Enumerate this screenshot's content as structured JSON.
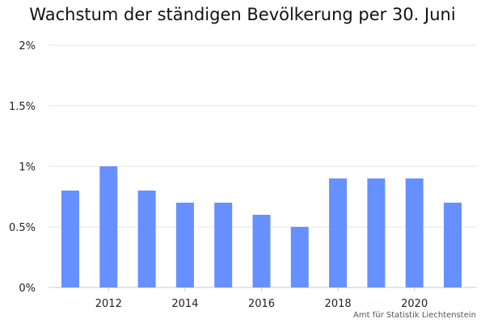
{
  "chart_data": {
    "type": "bar",
    "title": "Wachstum der ständigen Bevölkerung per 30. Juni",
    "xlabel": "",
    "ylabel": "",
    "x": [
      2011,
      2012,
      2013,
      2014,
      2015,
      2016,
      2017,
      2018,
      2019,
      2020,
      2021
    ],
    "values": [
      0.8,
      1.0,
      0.8,
      0.7,
      0.7,
      0.6,
      0.5,
      0.9,
      0.9,
      0.9,
      0.7
    ],
    "x_tick_labels": [
      "2012",
      "2014",
      "2016",
      "2018",
      "2020"
    ],
    "y_ticks": [
      0,
      0.5,
      1,
      1.5,
      2
    ],
    "y_tick_labels": [
      "0%",
      "0.5%",
      "1%",
      "1.5%",
      "2%"
    ],
    "ylim": [
      0,
      2
    ],
    "grid": true,
    "bar_color": "#6690ff",
    "source": "Amt für Statistik Liechtenstein"
  }
}
